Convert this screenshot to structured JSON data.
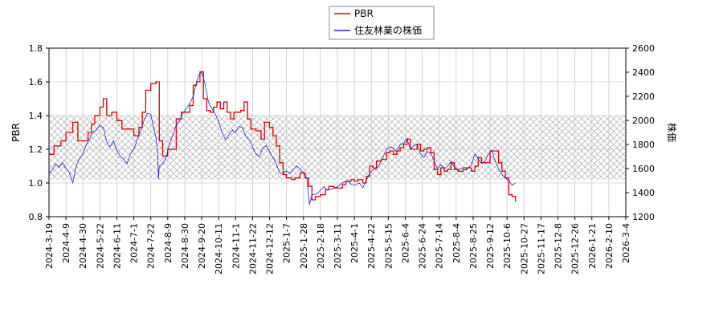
{
  "chart_data": {
    "type": "line",
    "legend": {
      "placement": "top-center",
      "entries": [
        {
          "name": "PBR",
          "color": "#dd0000"
        },
        {
          "name": "住友林業の株価",
          "color": "#2222cc"
        }
      ]
    },
    "left_axis": {
      "label": "PBR",
      "min": 0.8,
      "max": 1.8,
      "ticks": [
        "0.8",
        "1.0",
        "1.2",
        "1.4",
        "1.6",
        "1.8"
      ]
    },
    "right_axis": {
      "label": "株価",
      "min": 1200,
      "max": 2600,
      "ticks": [
        "1200",
        "1400",
        "1600",
        "1800",
        "2000",
        "2200",
        "2400",
        "2600"
      ]
    },
    "band": {
      "from": 1.02,
      "to": 1.4,
      "hatch": true
    },
    "grid": true,
    "x_ticks": [
      "2024-3-19",
      "2024-4-9",
      "2024-4-30",
      "2024-5-22",
      "2024-6-11",
      "2024-7-1",
      "2024-7-22",
      "2024-8-9",
      "2024-8-30",
      "2024-9-20",
      "2024-10-11",
      "2024-11-1",
      "2024-11-22",
      "2024-12-12",
      "2025-1-7",
      "2025-1-28",
      "2025-2-18",
      "2025-3-11",
      "2025-4-1",
      "2025-4-22",
      "2025-5-15",
      "2025-6-4",
      "2025-6-24",
      "2025-7-14",
      "2025-8-4",
      "2025-8-25",
      "2025-9-12",
      "2025-10-6",
      "2025-10-27",
      "2025-11-17",
      "2025-12-8",
      "2025-12-26",
      "2026-1-21",
      "2026-2-10",
      "2026-3-4"
    ],
    "series": [
      {
        "name": "PBR",
        "axis": "left",
        "color": "#dd0000",
        "points": [
          [
            0,
            1.17
          ],
          [
            0.3,
            1.22
          ],
          [
            0.7,
            1.25
          ],
          [
            1,
            1.3
          ],
          [
            1.4,
            1.36
          ],
          [
            1.7,
            1.25
          ],
          [
            2,
            1.25
          ],
          [
            2.3,
            1.3
          ],
          [
            2.5,
            1.35
          ],
          [
            2.7,
            1.4
          ],
          [
            3,
            1.45
          ],
          [
            3.2,
            1.5
          ],
          [
            3.4,
            1.4
          ],
          [
            3.7,
            1.42
          ],
          [
            4,
            1.37
          ],
          [
            4.3,
            1.32
          ],
          [
            4.7,
            1.32
          ],
          [
            5,
            1.28
          ],
          [
            5.3,
            1.33
          ],
          [
            5.5,
            1.42
          ],
          [
            5.7,
            1.55
          ],
          [
            6,
            1.59
          ],
          [
            6.3,
            1.6
          ],
          [
            6.5,
            1.25
          ],
          [
            6.7,
            1.16
          ],
          [
            7,
            1.2
          ],
          [
            7.3,
            1.2
          ],
          [
            7.5,
            1.38
          ],
          [
            7.8,
            1.42
          ],
          [
            8,
            1.42
          ],
          [
            8.3,
            1.46
          ],
          [
            8.5,
            1.58
          ],
          [
            8.7,
            1.6
          ],
          [
            8.9,
            1.66
          ],
          [
            9.1,
            1.5
          ],
          [
            9.3,
            1.43
          ],
          [
            9.5,
            1.42
          ],
          [
            9.7,
            1.45
          ],
          [
            9.9,
            1.48
          ],
          [
            10.1,
            1.44
          ],
          [
            10.3,
            1.48
          ],
          [
            10.5,
            1.42
          ],
          [
            10.7,
            1.38
          ],
          [
            10.9,
            1.42
          ],
          [
            11.1,
            1.42
          ],
          [
            11.3,
            1.43
          ],
          [
            11.5,
            1.48
          ],
          [
            11.7,
            1.38
          ],
          [
            11.9,
            1.32
          ],
          [
            12.2,
            1.31
          ],
          [
            12.5,
            1.26
          ],
          [
            12.7,
            1.36
          ],
          [
            13,
            1.33
          ],
          [
            13.2,
            1.28
          ],
          [
            13.4,
            1.22
          ],
          [
            13.6,
            1.12
          ],
          [
            13.8,
            1.05
          ],
          [
            14,
            1.03
          ],
          [
            14.3,
            1.02
          ],
          [
            14.5,
            1.03
          ],
          [
            14.8,
            1.06
          ],
          [
            15.1,
            1.03
          ],
          [
            15.3,
            0.98
          ],
          [
            15.5,
            0.9
          ],
          [
            15.7,
            0.92
          ],
          [
            16,
            0.93
          ],
          [
            16.3,
            0.96
          ],
          [
            16.5,
            0.98
          ],
          [
            16.8,
            0.97
          ],
          [
            17,
            0.97
          ],
          [
            17.3,
            0.99
          ],
          [
            17.5,
            1.01
          ],
          [
            17.8,
            1.02
          ],
          [
            18,
            1.01
          ],
          [
            18.2,
            1.02
          ],
          [
            18.5,
            1.0
          ],
          [
            18.7,
            1.04
          ],
          [
            18.9,
            1.1
          ],
          [
            19.1,
            1.09
          ],
          [
            19.3,
            1.13
          ],
          [
            19.6,
            1.14
          ],
          [
            19.9,
            1.18
          ],
          [
            20.1,
            1.19
          ],
          [
            20.3,
            1.17
          ],
          [
            20.5,
            1.19
          ],
          [
            20.7,
            1.21
          ],
          [
            20.9,
            1.23
          ],
          [
            21.1,
            1.26
          ],
          [
            21.3,
            1.2
          ],
          [
            21.5,
            1.2
          ],
          [
            21.7,
            1.23
          ],
          [
            21.9,
            1.19
          ],
          [
            22.1,
            1.2
          ],
          [
            22.3,
            1.21
          ],
          [
            22.5,
            1.18
          ],
          [
            22.7,
            1.08
          ],
          [
            22.9,
            1.05
          ],
          [
            23.1,
            1.09
          ],
          [
            23.3,
            1.07
          ],
          [
            23.5,
            1.08
          ],
          [
            23.7,
            1.12
          ],
          [
            23.9,
            1.08
          ],
          [
            24.1,
            1.07
          ],
          [
            24.4,
            1.08
          ],
          [
            24.6,
            1.09
          ],
          [
            24.9,
            1.07
          ],
          [
            25.1,
            1.1
          ],
          [
            25.3,
            1.15
          ],
          [
            25.5,
            1.12
          ],
          [
            25.8,
            1.12
          ],
          [
            26,
            1.19
          ],
          [
            26.3,
            1.19
          ],
          [
            26.5,
            1.12
          ],
          [
            26.7,
            1.07
          ],
          [
            26.9,
            1.03
          ],
          [
            27.1,
            0.93
          ],
          [
            27.3,
            0.92
          ],
          [
            27.5,
            0.89
          ]
        ]
      },
      {
        "name": "住友林業の株価",
        "axis": "right",
        "color": "#2222cc",
        "points": [
          [
            0,
            1560
          ],
          [
            0.2,
            1590
          ],
          [
            0.4,
            1640
          ],
          [
            0.6,
            1610
          ],
          [
            0.8,
            1650
          ],
          [
            1,
            1600
          ],
          [
            1.2,
            1570
          ],
          [
            1.3,
            1520
          ],
          [
            1.4,
            1480
          ],
          [
            1.6,
            1620
          ],
          [
            1.8,
            1680
          ],
          [
            2,
            1720
          ],
          [
            2.2,
            1800
          ],
          [
            2.4,
            1850
          ],
          [
            2.6,
            1900
          ],
          [
            2.8,
            1920
          ],
          [
            3,
            1960
          ],
          [
            3.2,
            1940
          ],
          [
            3.4,
            1820
          ],
          [
            3.6,
            1780
          ],
          [
            3.8,
            1830
          ],
          [
            4,
            1750
          ],
          [
            4.2,
            1700
          ],
          [
            4.4,
            1680
          ],
          [
            4.6,
            1640
          ],
          [
            4.8,
            1720
          ],
          [
            5,
            1760
          ],
          [
            5.2,
            1840
          ],
          [
            5.4,
            1910
          ],
          [
            5.6,
            2000
          ],
          [
            5.8,
            2060
          ],
          [
            6,
            2050
          ],
          [
            6.2,
            1920
          ],
          [
            6.3,
            1860
          ],
          [
            6.4,
            1740
          ],
          [
            6.45,
            1510
          ],
          [
            6.5,
            1620
          ],
          [
            6.7,
            1640
          ],
          [
            6.9,
            1690
          ],
          [
            7.1,
            1800
          ],
          [
            7.3,
            1880
          ],
          [
            7.5,
            1960
          ],
          [
            7.7,
            2000
          ],
          [
            7.9,
            2060
          ],
          [
            8.1,
            2100
          ],
          [
            8.3,
            2140
          ],
          [
            8.5,
            2200
          ],
          [
            8.7,
            2320
          ],
          [
            8.85,
            2380
          ],
          [
            9,
            2400
          ],
          [
            9.2,
            2300
          ],
          [
            9.4,
            2150
          ],
          [
            9.6,
            2100
          ],
          [
            9.8,
            2050
          ],
          [
            10,
            1990
          ],
          [
            10.2,
            1900
          ],
          [
            10.4,
            1840
          ],
          [
            10.6,
            1880
          ],
          [
            10.8,
            1920
          ],
          [
            11,
            1900
          ],
          [
            11.2,
            1950
          ],
          [
            11.4,
            1940
          ],
          [
            11.6,
            1870
          ],
          [
            11.8,
            1840
          ],
          [
            12,
            1780
          ],
          [
            12.2,
            1720
          ],
          [
            12.4,
            1700
          ],
          [
            12.6,
            1770
          ],
          [
            12.8,
            1790
          ],
          [
            13,
            1740
          ],
          [
            13.2,
            1690
          ],
          [
            13.4,
            1640
          ],
          [
            13.6,
            1560
          ],
          [
            13.8,
            1560
          ],
          [
            14,
            1580
          ],
          [
            14.2,
            1560
          ],
          [
            14.4,
            1590
          ],
          [
            14.6,
            1620
          ],
          [
            14.8,
            1600
          ],
          [
            15,
            1560
          ],
          [
            15.2,
            1520
          ],
          [
            15.35,
            1300
          ],
          [
            15.5,
            1380
          ],
          [
            15.8,
            1390
          ],
          [
            16,
            1420
          ],
          [
            16.2,
            1450
          ],
          [
            16.4,
            1420
          ],
          [
            16.7,
            1430
          ],
          [
            17,
            1450
          ],
          [
            17.3,
            1480
          ],
          [
            17.6,
            1500
          ],
          [
            17.8,
            1470
          ],
          [
            18,
            1460
          ],
          [
            18.3,
            1480
          ],
          [
            18.5,
            1440
          ],
          [
            18.7,
            1500
          ],
          [
            18.9,
            1560
          ],
          [
            19.1,
            1590
          ],
          [
            19.3,
            1600
          ],
          [
            19.5,
            1640
          ],
          [
            19.7,
            1700
          ],
          [
            19.9,
            1760
          ],
          [
            20.1,
            1780
          ],
          [
            20.3,
            1770
          ],
          [
            20.5,
            1740
          ],
          [
            20.7,
            1800
          ],
          [
            20.9,
            1810
          ],
          [
            21.1,
            1850
          ],
          [
            21.3,
            1760
          ],
          [
            21.5,
            1790
          ],
          [
            21.7,
            1800
          ],
          [
            21.9,
            1720
          ],
          [
            22.1,
            1690
          ],
          [
            22.3,
            1740
          ],
          [
            22.5,
            1730
          ],
          [
            22.7,
            1660
          ],
          [
            22.9,
            1600
          ],
          [
            23.1,
            1630
          ],
          [
            23.3,
            1600
          ],
          [
            23.5,
            1620
          ],
          [
            23.7,
            1660
          ],
          [
            23.9,
            1610
          ],
          [
            24.1,
            1590
          ],
          [
            24.3,
            1600
          ],
          [
            24.5,
            1610
          ],
          [
            24.7,
            1600
          ],
          [
            24.9,
            1630
          ],
          [
            25.1,
            1720
          ],
          [
            25.3,
            1680
          ],
          [
            25.5,
            1640
          ],
          [
            25.7,
            1660
          ],
          [
            25.9,
            1720
          ],
          [
            26.1,
            1750
          ],
          [
            26.3,
            1660
          ],
          [
            26.5,
            1600
          ],
          [
            26.7,
            1550
          ],
          [
            26.9,
            1520
          ],
          [
            27.1,
            1500
          ],
          [
            27.3,
            1460
          ],
          [
            27.5,
            1480
          ]
        ]
      }
    ]
  }
}
